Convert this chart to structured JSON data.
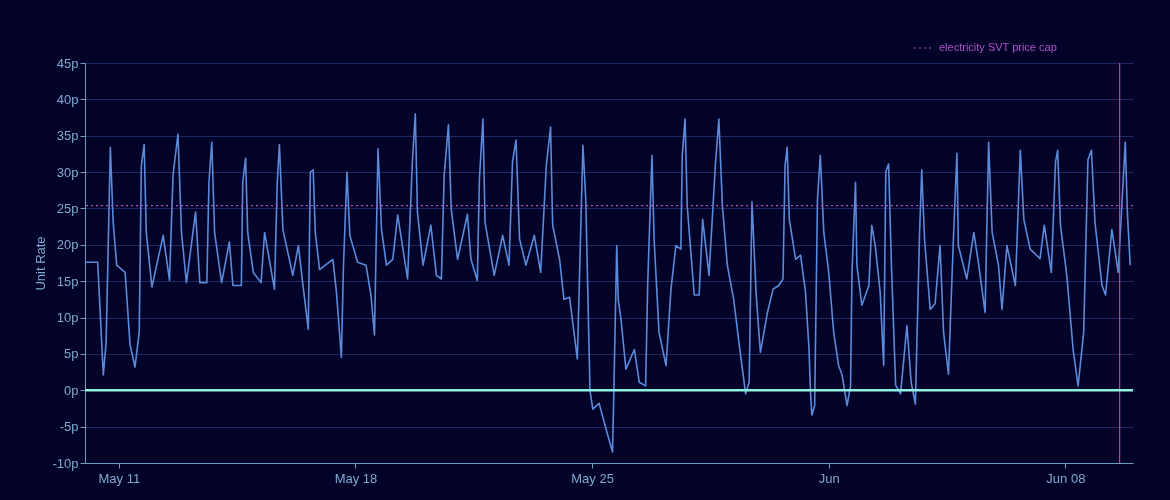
{
  "chart_data": {
    "type": "line",
    "ylabel": "Unit Rate",
    "x": [
      "--05-10T00:00",
      "--05-10T09:00",
      "--05-10T13:00",
      "--05-10T15:00",
      "--05-10T18:00",
      "--05-10T20:00",
      "--05-10T22:30",
      "--05-11T04:30",
      "--05-11T08:00",
      "--05-11T11:30",
      "--05-11T14:30",
      "--05-11T16:00",
      "--05-11T18:00",
      "--05-11T19:30",
      "--05-11T23:30",
      "--05-12T07:30",
      "--05-12T12:00",
      "--05-12T14:30",
      "--05-12T18:00",
      "--05-12T20:30",
      "--05-13T00:00",
      "--05-13T06:30",
      "--05-13T09:30",
      "--05-13T14:30",
      "--05-13T16:00",
      "--05-13T18:00",
      "--05-13T20:00",
      "--05-14T01:00",
      "--05-14T06:30",
      "--05-14T09:00",
      "--05-14T15:00",
      "--05-14T16:00",
      "--05-14T18:00",
      "--05-14T19:30",
      "--05-14T23:30",
      "--05-15T05:00",
      "--05-15T07:30",
      "--05-15T14:30",
      "--05-15T16:30",
      "--05-15T18:00",
      "--05-15T20:30",
      "--05-16T03:30",
      "--05-16T07:30",
      "--05-16T10:30",
      "--05-16T14:30",
      "--05-16T16:00",
      "--05-16T18:00",
      "--05-16T19:30",
      "--05-16T22:30",
      "--05-17T08:00",
      "--05-17T10:30",
      "--05-17T14:00",
      "--05-17T15:30",
      "--05-17T18:00",
      "--05-17T20:00",
      "--05-18T01:30",
      "--05-18T07:30",
      "--05-18T11:00",
      "--05-18T13:30",
      "--05-18T16:00",
      "--05-18T18:30",
      "--05-18T22:00",
      "--05-19T02:30",
      "--05-19T06:00",
      "--05-19T13:00",
      "--05-19T16:30",
      "--05-19T18:30",
      "--05-19T20:00",
      "--05-20T00:00",
      "--05-20T05:30",
      "--05-20T09:30",
      "--05-20T13:00",
      "--05-20T15:00",
      "--05-20T18:00",
      "--05-20T20:00",
      "--05-21T00:30",
      "--05-21T07:30",
      "--05-21T10:00",
      "--05-21T14:30",
      "--05-21T16:00",
      "--05-21T18:30",
      "--05-21T20:00",
      "--05-22T02:30",
      "--05-22T08:30",
      "--05-22T13:00",
      "--05-22T15:30",
      "--05-22T18:00",
      "--05-22T20:30",
      "--05-23T01:00",
      "--05-23T07:00",
      "--05-23T11:30",
      "--05-23T15:30",
      "--05-23T18:30",
      "--05-23T20:00",
      "--05-24T01:00",
      "--05-24T04:00",
      "--05-24T08:00",
      "--05-24T13:30",
      "--05-24T17:30",
      "--05-24T19:30",
      "--05-24T22:30",
      "--05-25T00:30",
      "--05-25T05:00",
      "--05-25T10:00",
      "--05-25T14:30",
      "--05-25T15:30",
      "--05-25T17:30",
      "--05-25T18:30",
      "--05-25T20:30",
      "--05-26T00:00",
      "--05-26T06:00",
      "--05-26T09:30",
      "--05-26T14:00",
      "--05-26T15:30",
      "--05-26T18:30",
      "--05-26T20:00",
      "--05-26T23:30",
      "--05-27T04:30",
      "--05-27T08:00",
      "--05-27T11:30",
      "--05-27T15:00",
      "--05-27T16:00",
      "--05-27T18:00",
      "--05-27T19:30",
      "--05-28T00:30",
      "--05-28T04:00",
      "--05-28T06:30",
      "--05-28T11:00",
      "--05-28T15:30",
      "--05-28T18:00",
      "--05-28T20:30",
      "--05-29T00:00",
      "--05-29T04:30",
      "--05-29T08:30",
      "--05-29T13:00",
      "--05-29T15:30",
      "--05-29T17:30",
      "--05-29T20:30",
      "--05-29T23:30",
      "--05-30T04:30",
      "--05-30T08:30",
      "--05-30T12:30",
      "--05-30T15:30",
      "--05-30T17:00",
      "--05-30T18:30",
      "--05-30T20:00",
      "--05-31T00:30",
      "--05-31T04:00",
      "--05-31T07:30",
      "--05-31T10:00",
      "--05-31T11:00",
      "--05-31T12:00",
      "--05-31T14:00",
      "--05-31T16:00",
      "--05-31T18:00",
      "--05-31T20:30",
      "--06-01T00:00",
      "--06-01T03:30",
      "--06-01T07:00",
      "--06-01T09:30",
      "--06-01T13:00",
      "--06-01T15:30",
      "--06-01T16:30",
      "--06-01T19:00",
      "--06-01T20:00",
      "--06-01T23:30",
      "--06-02T04:30",
      "--06-02T06:30",
      "--06-02T09:00",
      "--06-02T12:30",
      "--06-02T15:00",
      "--06-02T16:30",
      "--06-02T18:30",
      "--06-02T20:30",
      "--06-02T23:30",
      "--06-03T03:00",
      "--06-03T07:30",
      "--06-03T10:30",
      "--06-03T13:30",
      "--06-03T16:30",
      "--06-03T18:00",
      "--06-03T20:00",
      "--06-04T00:00",
      "--06-04T03:30",
      "--06-04T07:00",
      "--06-04T09:30",
      "--06-04T13:00",
      "--06-04T16:30",
      "--06-04T19:00",
      "--06-04T20:00",
      "--06-05T02:00",
      "--06-05T07:00",
      "--06-05T10:30",
      "--06-05T15:00",
      "--06-05T17:30",
      "--06-05T20:00",
      "--06-06T00:30",
      "--06-06T03:00",
      "--06-06T06:30",
      "--06-06T12:30",
      "--06-06T16:00",
      "--06-06T18:30",
      "--06-06T23:00",
      "--06-07T06:00",
      "--06-07T09:00",
      "--06-07T14:00",
      "--06-07T17:00",
      "--06-07T18:30",
      "--06-07T20:30",
      "--06-08T01:00",
      "--06-08T05:30",
      "--06-08T09:00",
      "--06-08T13:00",
      "--06-08T16:00",
      "--06-08T18:30",
      "--06-08T21:00",
      "--06-09T02:00",
      "--06-09T04:30",
      "--06-09T09:00",
      "--06-09T13:30",
      "--06-09T18:30",
      "--06-09T20:00",
      "--06-09T22:00"
    ],
    "series": [
      {
        "color": "#5a8ad8",
        "values": [
          17.6,
          17.6,
          2.1,
          6.6,
          33.4,
          23.1,
          17.2,
          16.2,
          6.2,
          3.2,
          8.0,
          30.9,
          33.8,
          21.7,
          14.2,
          21.3,
          15.1,
          29.6,
          35.2,
          21.7,
          14.8,
          24.5,
          14.8,
          14.8,
          28.6,
          34.1,
          21.7,
          14.8,
          20.4,
          14.4,
          14.4,
          28.6,
          31.9,
          21.7,
          16.2,
          14.8,
          21.7,
          13.9,
          28.6,
          33.8,
          22.1,
          15.8,
          19.9,
          14.8,
          8.4,
          30.0,
          30.3,
          21.7,
          16.6,
          18.0,
          13.5,
          4.5,
          17.2,
          30.0,
          21.3,
          17.6,
          17.2,
          13.1,
          7.6,
          33.2,
          22.1,
          17.2,
          18.0,
          24.1,
          15.3,
          31.8,
          38.0,
          24.5,
          17.2,
          22.7,
          15.8,
          15.3,
          29.6,
          36.5,
          24.9,
          18.0,
          24.2,
          18.0,
          15.1,
          29.0,
          37.3,
          23.1,
          15.8,
          21.3,
          17.2,
          31.4,
          34.4,
          20.8,
          17.2,
          21.3,
          16.2,
          30.9,
          36.2,
          22.7,
          17.9,
          12.5,
          12.8,
          4.3,
          33.7,
          26.3,
          0,
          -2.6,
          -1.8,
          -5.4,
          -8.5,
          0.4,
          19.9,
          12.5,
          9.8,
          2.9,
          5.6,
          1.1,
          0.6,
          14.8,
          32.3,
          20.8,
          8.0,
          3.4,
          13.9,
          19.9,
          19.4,
          32.3,
          37.3,
          25.4,
          13.1,
          13.1,
          23.5,
          15.8,
          30.9,
          37.3,
          25.4,
          17.2,
          12.5,
          6.2,
          -0.5,
          1.1,
          25.9,
          13.1,
          5.2,
          10.7,
          13.9,
          14.4,
          15.3,
          30.9,
          33.4,
          23.5,
          18.0,
          18.6,
          13.5,
          5.6,
          0,
          -3.4,
          -2.1,
          26.3,
          32.3,
          21.7,
          16.2,
          8.0,
          3.4,
          2.1,
          -2.1,
          0.6,
          16.2,
          28.6,
          17.2,
          11.7,
          14.4,
          22.7,
          19.9,
          13.5,
          3.4,
          30.0,
          31.1,
          17.2,
          0.7,
          -0.5,
          8.9,
          1.1,
          -1.9,
          21.7,
          30.3,
          20.8,
          11.1,
          11.9,
          19.9,
          8.0,
          2.2,
          20.8,
          32.6,
          19.9,
          15.3,
          21.7,
          17.2,
          10.7,
          34.1,
          21.7,
          17.2,
          11.1,
          19.9,
          14.4,
          33.0,
          23.5,
          19.4,
          18.1,
          22.7,
          16.2,
          31.4,
          33.0,
          22.7,
          15.8,
          5.6,
          0.6,
          8.0,
          31.7,
          33.0,
          23.1,
          14.4,
          13.1,
          22.1,
          16.2,
          34.1,
          24.5,
          17.2
        ]
      }
    ],
    "xlim": [
      "--05-10",
      "--06-10"
    ],
    "xticks": [
      {
        "value": "--05-11",
        "label": "May 11"
      },
      {
        "value": "--05-18",
        "label": "May 18"
      },
      {
        "value": "--05-25",
        "label": "May 25"
      },
      {
        "value": "--06-01",
        "label": "Jun"
      },
      {
        "value": "--06-08",
        "label": "Jun 08"
      }
    ],
    "ylim": [
      -10,
      45
    ],
    "yticks": [
      {
        "value": -10,
        "label": "-10p"
      },
      {
        "value": -5,
        "label": "-5p"
      },
      {
        "value": 0,
        "label": "0p"
      },
      {
        "value": 5,
        "label": "5p"
      },
      {
        "value": 10,
        "label": "10p"
      },
      {
        "value": 15,
        "label": "15p"
      },
      {
        "value": 20,
        "label": "20p"
      },
      {
        "value": 25,
        "label": "25p"
      },
      {
        "value": 30,
        "label": "30p"
      },
      {
        "value": 35,
        "label": "35p"
      },
      {
        "value": 40,
        "label": "40p"
      },
      {
        "value": 45,
        "label": "45p"
      }
    ],
    "ref_lines": [
      {
        "axis": "y",
        "value": 25.4,
        "label": "electricity SVT price cap",
        "color": "#b050c8",
        "line_style": "dotted"
      },
      {
        "axis": "y",
        "value": 0,
        "color": "#8ff0e0",
        "line_style": "solid"
      },
      {
        "axis": "x",
        "value": "--06-09T14:30",
        "color": "#c0409a",
        "line_style": "solid"
      }
    ],
    "grid": "y",
    "legend": "top right"
  }
}
